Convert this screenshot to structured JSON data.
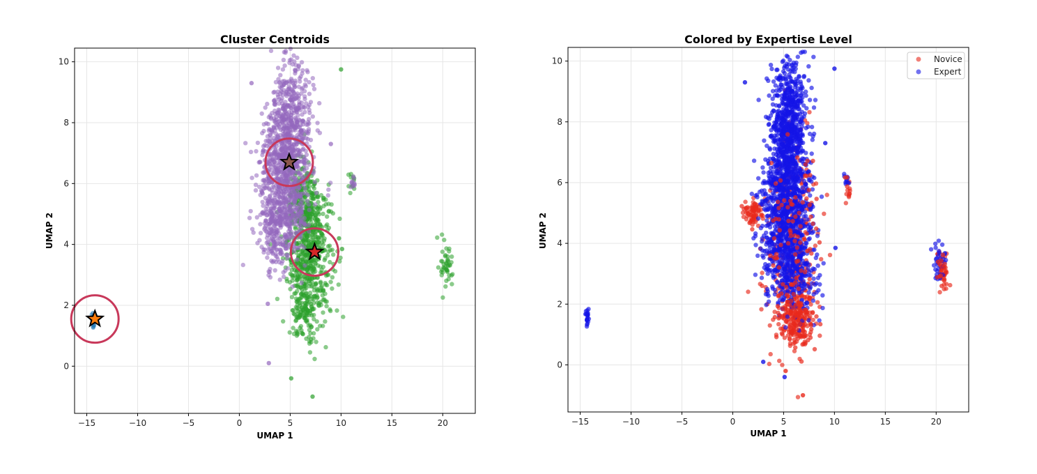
{
  "chart_data": [
    {
      "type": "scatter",
      "title": "Cluster Centroids",
      "xlabel": "UMAP 1",
      "ylabel": "UMAP 2",
      "xlim": [
        -16.2,
        23.2
      ],
      "ylim": [
        -1.55,
        10.45
      ],
      "xticks": [
        -15,
        -10,
        -5,
        0,
        5,
        10,
        15,
        20
      ],
      "yticks": [
        0,
        2,
        4,
        6,
        8,
        10
      ],
      "grid": true,
      "colors": {
        "purple": "#9467bd",
        "green": "#2ca02c",
        "blue": "#1f77b4",
        "orange": "#ff7f0e",
        "red": "#d62728",
        "brown": "#8c564b",
        "circle": "#c8385a"
      },
      "clusters": [
        {
          "color": "purple",
          "regions": [
            {
              "cx": 5.0,
              "cy": 7.6,
              "sx": 1.1,
              "sy": 1.15,
              "n": 700
            },
            {
              "cx": 4.6,
              "cy": 5.2,
              "sx": 1.1,
              "sy": 0.85,
              "n": 350
            },
            {
              "cx": 3.4,
              "cy": 4.3,
              "sx": 0.7,
              "sy": 0.6,
              "n": 120
            },
            {
              "cx": 3.2,
              "cy": 6.4,
              "sx": 0.9,
              "sy": 1.0,
              "n": 150
            },
            {
              "cx": 11.2,
              "cy": 6.05,
              "sx": 0.15,
              "sy": 0.12,
              "n": 10
            }
          ]
        },
        {
          "color": "green",
          "regions": [
            {
              "cx": 6.9,
              "cy": 3.6,
              "sx": 1.1,
              "sy": 1.1,
              "n": 550
            },
            {
              "cx": 6.4,
              "cy": 5.4,
              "sx": 0.8,
              "sy": 0.7,
              "n": 220
            },
            {
              "cx": 6.2,
              "cy": 1.6,
              "sx": 0.6,
              "sy": 0.4,
              "n": 80
            },
            {
              "cx": 20.4,
              "cy": 3.3,
              "sx": 0.3,
              "sy": 0.35,
              "n": 45
            },
            {
              "cx": 11.1,
              "cy": 5.95,
              "sx": 0.18,
              "sy": 0.18,
              "n": 12
            }
          ]
        },
        {
          "color": "blue",
          "regions": [
            {
              "cx": -14.3,
              "cy": 1.55,
              "sx": 0.12,
              "sy": 0.14,
              "n": 20
            }
          ]
        }
      ],
      "outliers": [
        {
          "x": 10.0,
          "y": 9.75,
          "color": "green"
        },
        {
          "x": 9.0,
          "y": 7.3,
          "color": "purple"
        },
        {
          "x": 7.2,
          "y": -1.0,
          "color": "green"
        },
        {
          "x": 5.1,
          "y": -0.4,
          "color": "green"
        },
        {
          "x": 2.9,
          "y": 0.1,
          "color": "purple"
        },
        {
          "x": 2.8,
          "y": 2.05,
          "color": "purple"
        },
        {
          "x": 1.2,
          "y": 9.3,
          "color": "purple"
        },
        {
          "x": 10.1,
          "y": 3.85,
          "color": "green"
        },
        {
          "x": 9.8,
          "y": 4.2,
          "color": "green"
        }
      ],
      "centroids": [
        {
          "x": 4.9,
          "y": 6.7,
          "color": "brown"
        },
        {
          "x": 7.4,
          "y": 3.75,
          "color": "red"
        },
        {
          "x": -14.2,
          "y": 1.55,
          "color": "orange"
        }
      ],
      "rings": [
        {
          "x": 4.9,
          "y": 6.7
        },
        {
          "x": 7.4,
          "y": 3.75
        },
        {
          "x": -14.2,
          "y": 1.55
        }
      ]
    },
    {
      "type": "scatter",
      "title": "Colored by Expertise Level",
      "xlabel": "UMAP 1",
      "ylabel": "UMAP 2",
      "xlim": [
        -16.2,
        23.2
      ],
      "ylim": [
        -1.55,
        10.45
      ],
      "xticks": [
        -15,
        -10,
        -5,
        0,
        5,
        10,
        15,
        20
      ],
      "yticks": [
        0,
        2,
        4,
        6,
        8,
        10
      ],
      "grid": true,
      "legend_position": "top-right",
      "series": [
        {
          "name": "Novice",
          "color": "#e8291c",
          "regions": [
            {
              "cx": 6.3,
              "cy": 1.5,
              "sx": 0.8,
              "sy": 0.5,
              "n": 160
            },
            {
              "cx": 5.8,
              "cy": 4.0,
              "sx": 1.4,
              "sy": 1.6,
              "n": 260
            },
            {
              "cx": 1.9,
              "cy": 5.0,
              "sx": 0.45,
              "sy": 0.2,
              "n": 50
            },
            {
              "cx": 20.6,
              "cy": 3.1,
              "sx": 0.3,
              "sy": 0.35,
              "n": 40
            },
            {
              "cx": 11.3,
              "cy": 5.8,
              "sx": 0.15,
              "sy": 0.15,
              "n": 10
            }
          ]
        },
        {
          "name": "Expert",
          "color": "#1414e6",
          "regions": [
            {
              "cx": 5.5,
              "cy": 7.6,
              "sx": 0.9,
              "sy": 1.2,
              "n": 800
            },
            {
              "cx": 5.2,
              "cy": 5.2,
              "sx": 1.2,
              "sy": 1.0,
              "n": 700
            },
            {
              "cx": 5.6,
              "cy": 3.2,
              "sx": 1.3,
              "sy": 0.8,
              "n": 400
            },
            {
              "cx": 20.3,
              "cy": 3.4,
              "sx": 0.25,
              "sy": 0.3,
              "n": 35
            },
            {
              "cx": -14.3,
              "cy": 1.55,
              "sx": 0.1,
              "sy": 0.15,
              "n": 22
            },
            {
              "cx": 11.1,
              "cy": 6.1,
              "sx": 0.15,
              "sy": 0.12,
              "n": 10
            }
          ]
        }
      ],
      "outliers": [
        {
          "x": 10.0,
          "y": 9.75,
          "color": "#1414e6"
        },
        {
          "x": 9.1,
          "y": 7.3,
          "color": "#1414e6"
        },
        {
          "x": 6.9,
          "y": -1.0,
          "color": "#e8291c"
        },
        {
          "x": 5.1,
          "y": -0.4,
          "color": "#1414e6"
        },
        {
          "x": 3.0,
          "y": 0.1,
          "color": "#1414e6"
        },
        {
          "x": 1.2,
          "y": 9.3,
          "color": "#1414e6"
        },
        {
          "x": 10.1,
          "y": 3.85,
          "color": "#1414e6"
        },
        {
          "x": 5.2,
          "y": -0.2,
          "color": "#e8291c"
        }
      ]
    }
  ]
}
